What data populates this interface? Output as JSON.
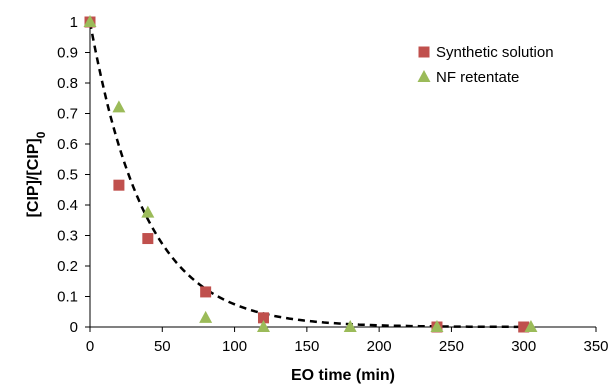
{
  "chart_data": {
    "type": "scatter",
    "xlabel": "EO time (min)",
    "ylabel": "[CIP]/[CIP]",
    "ylabel_subscript": "0",
    "xlim": [
      0,
      350
    ],
    "ylim": [
      0,
      1
    ],
    "x_ticks": [
      "0",
      "50",
      "100",
      "150",
      "200",
      "250",
      "300",
      "350"
    ],
    "y_ticks": [
      "0",
      "0.1",
      "0.2",
      "0.3",
      "0.4",
      "0.5",
      "0.6",
      "0.7",
      "0.8",
      "0.9",
      "1"
    ],
    "grid": false,
    "legend_position": "top-right",
    "series": [
      {
        "name": "Synthetic solution",
        "marker": "square",
        "color": "#c0504d",
        "points": [
          {
            "x": 0,
            "y": 1.0
          },
          {
            "x": 20,
            "y": 0.465
          },
          {
            "x": 40,
            "y": 0.29
          },
          {
            "x": 80,
            "y": 0.115
          },
          {
            "x": 120,
            "y": 0.03
          },
          {
            "x": 240,
            "y": 0.0
          },
          {
            "x": 300,
            "y": 0.0
          }
        ]
      },
      {
        "name": "NF retentate",
        "marker": "triangle",
        "color": "#9bbb59",
        "points": [
          {
            "x": 0,
            "y": 1.0
          },
          {
            "x": 20,
            "y": 0.72
          },
          {
            "x": 40,
            "y": 0.375
          },
          {
            "x": 80,
            "y": 0.03
          },
          {
            "x": 120,
            "y": 0.0
          },
          {
            "x": 180,
            "y": 0.0
          },
          {
            "x": 240,
            "y": 0.0
          },
          {
            "x": 305,
            "y": 0.0
          }
        ]
      }
    ],
    "fit_curve": {
      "style": "dashed",
      "color": "#000000",
      "model": "exponential_decay",
      "rate_per_min": 0.026,
      "x_range": [
        0,
        300
      ]
    }
  }
}
